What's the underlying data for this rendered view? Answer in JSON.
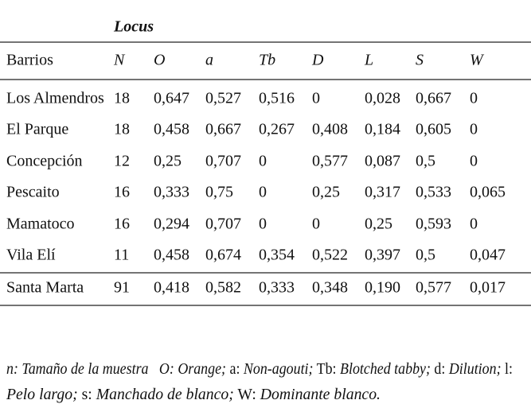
{
  "table": {
    "group_label": "Locus",
    "header": [
      "Barrios",
      "N",
      "O",
      "a",
      "Tb",
      "D",
      "L",
      "S",
      "W"
    ],
    "rows": [
      [
        "Los Almendros",
        "18",
        "0,647",
        "0,527",
        "0,516",
        "0",
        "0,028",
        "0,667",
        "0"
      ],
      [
        "El Parque",
        "18",
        "0,458",
        "0,667",
        "0,267",
        "0,408",
        "0,184",
        "0,605",
        "0"
      ],
      [
        "Concepción",
        "12",
        "0,25",
        "0,707",
        "0",
        "0,577",
        "0,087",
        "0,5",
        "0"
      ],
      [
        "Pescaito",
        "16",
        "0,333",
        "0,75",
        "0",
        "0,25",
        "0,317",
        "0,533",
        "0,065"
      ],
      [
        "Mamatoco",
        "16",
        "0,294",
        "0,707",
        "0",
        "0",
        "0,25",
        "0,593",
        "0"
      ],
      [
        "Vila Elí",
        "11",
        "0,458",
        "0,674",
        "0,354",
        "0,522",
        "0,397",
        "0,5",
        "0,047"
      ]
    ],
    "total": [
      "Santa Marta",
      "91",
      "0,418",
      "0,582",
      "0,333",
      "0,348",
      "0,190",
      "0,577",
      "0,017"
    ]
  },
  "footnote": {
    "lines": [
      [
        {
          "text": "n: Tamaño de la muestra   O: Orange;",
          "italic": true
        },
        {
          "text": " a: ",
          "italic": false
        },
        {
          "text": "Non-agouti;",
          "italic": true
        },
        {
          "text": " Tb: ",
          "italic": false
        },
        {
          "text": "Blotched tabby;",
          "italic": true
        },
        {
          "text": " d: ",
          "italic": false
        },
        {
          "text": "Dilution;",
          "italic": true
        },
        {
          "text": " l:",
          "italic": false
        }
      ],
      [
        {
          "text": "Pelo largo;",
          "italic": true
        },
        {
          "text": " s: ",
          "italic": false
        },
        {
          "text": "Manchado de blanco;",
          "italic": true
        },
        {
          "text": " W: ",
          "italic": false
        },
        {
          "text": "Dominante blanco.",
          "italic": true
        }
      ]
    ]
  }
}
